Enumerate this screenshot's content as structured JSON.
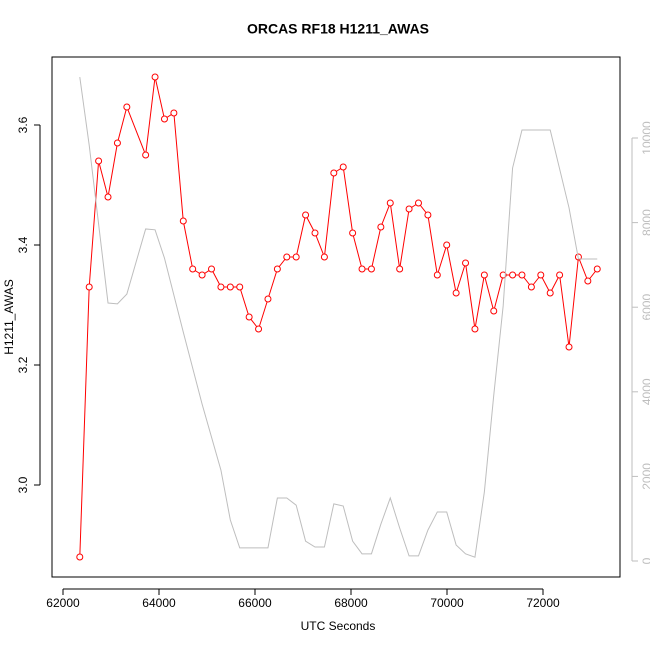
{
  "chart_data": {
    "type": "line",
    "title": "ORCAS RF18 H1211_AWAS",
    "x_label": "UTC Seconds",
    "y_label": "H1211_AWAS",
    "xlim": [
      61771,
      73604
    ],
    "xticks": [
      62000,
      64000,
      66000,
      68000,
      70000,
      72000
    ],
    "ylim": [
      2.8467,
      3.7133
    ],
    "yticks": [
      {
        "value": 3,
        "label": "3.0"
      },
      3.2,
      3.4,
      3.6
    ],
    "y2lim": [
      -378,
      11915
    ],
    "y2ticks": [
      0,
      2000,
      4000,
      6000,
      8000,
      10000
    ],
    "y2_color": "#bebebe",
    "series": [
      {
        "color": "#ff0000",
        "markers": true,
        "x": [
          62350,
          62546,
          62742,
          62938,
          63134,
          63330,
          63722,
          63918,
          64114,
          64310,
          64506,
          64702,
          64898,
          65094,
          65290,
          65486,
          65682,
          65878,
          66074,
          66270,
          66466,
          66662,
          66858,
          67054,
          67250,
          67446,
          67642,
          67838,
          68034,
          68230,
          68426,
          68622,
          68818,
          69014,
          69210,
          69406,
          69602,
          69798,
          69994,
          70190,
          70386,
          70582,
          70778,
          70974,
          71170,
          71366,
          71562,
          71758,
          71954,
          72150,
          72346,
          72542,
          72738,
          72934,
          73130
        ],
        "values": [
          2.88,
          3.33,
          3.54,
          3.48,
          3.57,
          3.63,
          3.55,
          3.68,
          3.61,
          3.62,
          3.44,
          3.36,
          3.35,
          3.36,
          3.33,
          3.33,
          3.33,
          3.28,
          3.26,
          3.31,
          3.36,
          3.38,
          3.38,
          3.45,
          3.42,
          3.38,
          3.52,
          3.53,
          3.42,
          3.36,
          3.36,
          3.43,
          3.47,
          3.36,
          3.46,
          3.47,
          3.45,
          3.35,
          3.4,
          3.32,
          3.37,
          3.26,
          3.35,
          3.29,
          3.35,
          3.35,
          3.35,
          3.33,
          3.35,
          3.32,
          3.35,
          3.23,
          3.38,
          3.34,
          3.36
        ]
      },
      {
        "color": "#bebebe",
        "markers": false,
        "axis": "y2",
        "x": [
          62350,
          62546,
          62938,
          63134,
          63330,
          63722,
          63918,
          64114,
          64506,
          64898,
          65290,
          65486,
          65682,
          65878,
          66270,
          66466,
          66662,
          66858,
          67054,
          67250,
          67446,
          67642,
          67838,
          68034,
          68230,
          68426,
          68622,
          68818,
          69014,
          69210,
          69406,
          69602,
          69798,
          69994,
          70190,
          70386,
          70582,
          70778,
          70974,
          71170,
          71366,
          71562,
          72150,
          72542,
          72738,
          73130
        ],
        "values": [
          11440,
          9830,
          6100,
          6080,
          6310,
          7850,
          7830,
          7160,
          5410,
          3710,
          2150,
          970,
          310,
          310,
          310,
          1490,
          1490,
          1320,
          470,
          330,
          330,
          1350,
          1300,
          470,
          170,
          170,
          870,
          1490,
          780,
          120,
          120,
          730,
          1160,
          1160,
          380,
          170,
          90,
          1630,
          3920,
          6030,
          9290,
          10190,
          10190,
          8350,
          7140,
          7140
        ]
      }
    ]
  }
}
